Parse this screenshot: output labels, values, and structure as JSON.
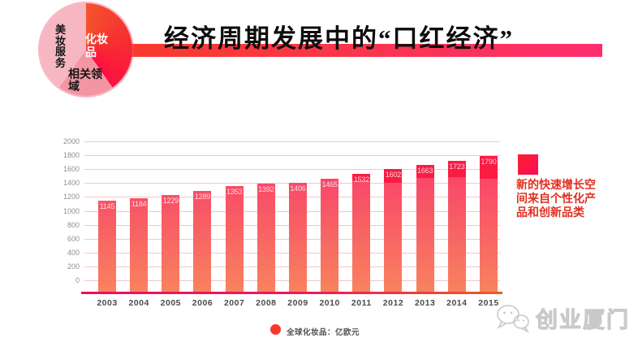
{
  "title": {
    "text": "经济周期发展中的“口红经济”"
  },
  "pie": {
    "slices": [
      {
        "label": "化妆品",
        "color": "#f8312f"
      },
      {
        "label": "相关领域",
        "color": "#f495a3"
      },
      {
        "label": "美妆服务",
        "color": "#f6b7c2"
      }
    ]
  },
  "chart_data": {
    "type": "bar",
    "categories": [
      "2003",
      "2004",
      "2005",
      "2006",
      "2007",
      "2008",
      "2009",
      "2010",
      "2011",
      "2012",
      "2013",
      "2014",
      "2015"
    ],
    "values": [
      1145,
      1184,
      1229,
      1289,
      1353,
      1392,
      1406,
      1465,
      1532,
      1602,
      1663,
      1723,
      1790
    ],
    "highlight_values": [
      0,
      0,
      0,
      0,
      0,
      0,
      0,
      0,
      95,
      200,
      190,
      235,
      330
    ],
    "highlight_label": "新的快速增长空间来自个性化产品和创新品类",
    "series_label": "全球化妆品：亿欧元",
    "title": "",
    "xlabel": "",
    "ylabel": "",
    "ylim": [
      0,
      2000
    ],
    "y_tick_labels": [
      "2000",
      "1800",
      "1600",
      "1400",
      "1200",
      "1000",
      "800",
      "600",
      "400",
      "200",
      "0"
    ],
    "grid": true,
    "legend_position": "right"
  },
  "legend_right": {
    "lines": [
      "新的快速增长空",
      "间来自个性化产",
      "品和创新品类"
    ]
  },
  "footer_legend": {
    "label": "全球化妆品：亿欧元"
  },
  "watermark": {
    "text": "创业厦门",
    "icon": "wechat-logo-icon"
  },
  "colors": {
    "bar_bottom": "#f8835e",
    "bar_top": "#f9346c",
    "bar_cap": "#fb1c43",
    "gridline": "#f6c3cb",
    "baseline_left": "#ec0e63",
    "baseline_right": "#ef5a27",
    "title_bar_left": "#f93b2d",
    "title_bar_right": "#fc2e6e",
    "legend_text": "#e03020",
    "value_label": "rgba(255,255,255,0.8)"
  }
}
